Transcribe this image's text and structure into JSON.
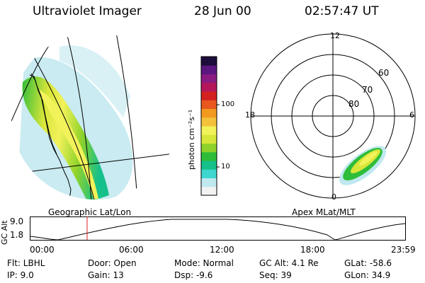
{
  "header": {
    "instrument": "Ultraviolet Imager",
    "date": "28 Jun 00",
    "time": "02:57:47 UT"
  },
  "left_panel": {
    "caption": "Geographic Lat/Lon"
  },
  "right_panel": {
    "caption": "Apex MLat/MLT",
    "mlt_labels": [
      "12",
      "18",
      "6",
      "0"
    ],
    "lat_labels": [
      "60",
      "70",
      "80"
    ]
  },
  "colorbar": {
    "unit_label": "photon cm⁻²s⁻¹",
    "tick_labels": [
      "100",
      "10"
    ],
    "colors_bottom_to_top": [
      "#f2f2f2",
      "#bfe8ef",
      "#3fd6d0",
      "#16c08a",
      "#2ebd3a",
      "#8fd22a",
      "#d8e63a",
      "#f2f25a",
      "#f4c23a",
      "#f19a1e",
      "#e7571e",
      "#d42020",
      "#b5165a",
      "#8a1b80",
      "#5a1780",
      "#1d0d3a"
    ]
  },
  "altitude_plot": {
    "axis_label": "GC Alt",
    "y_ticks": [
      "9.0",
      "1.8"
    ],
    "x_ticks": [
      "00:00",
      "06:00",
      "12:00",
      "18:00",
      "23:59"
    ],
    "current_time_marker": "02:57"
  },
  "info": {
    "flt": "Flt: LBHL",
    "ip": "IP:  9.0",
    "door": "Door: Open",
    "gain": "Gain: 13",
    "mode": "Mode: Normal",
    "dsp": "Dsp:    -9.6",
    "gcalt": "GC Alt: 4.1 Re",
    "seq": "Seq: 39",
    "glat": "GLat:  -58.6",
    "glon": "GLon:  34.9"
  }
}
